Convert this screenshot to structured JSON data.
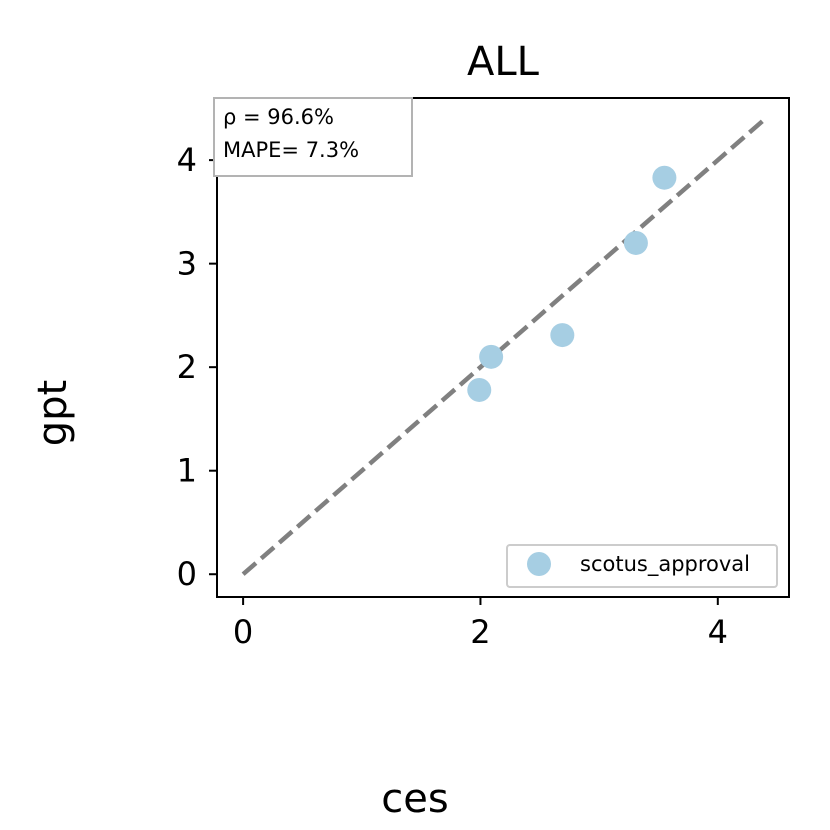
{
  "chart_data": {
    "type": "scatter",
    "title": "ALL",
    "xlabel": "ces",
    "ylabel": "gpt",
    "xlim": [
      -0.22,
      4.6
    ],
    "ylim": [
      -0.22,
      4.6
    ],
    "x_ticks": [
      0,
      2,
      4
    ],
    "y_ticks": [
      0,
      1,
      2,
      3,
      4
    ],
    "x_tick_labels": [
      "0",
      "2",
      "4"
    ],
    "y_tick_labels": [
      "0",
      "1",
      "2",
      "3",
      "4"
    ],
    "grid": false,
    "legend_position": "lower-right",
    "series": [
      {
        "name": "scotus_approval",
        "color": "#a6cee3",
        "points": [
          {
            "x": 1.99,
            "y": 1.78
          },
          {
            "x": 2.09,
            "y": 2.1
          },
          {
            "x": 2.69,
            "y": 2.31
          },
          {
            "x": 3.31,
            "y": 3.2
          },
          {
            "x": 3.55,
            "y": 3.83
          }
        ]
      }
    ],
    "reference_line": {
      "from": [
        0,
        0
      ],
      "to": [
        4.4,
        4.4
      ],
      "color": "#808080",
      "style": "dashed"
    },
    "annotations": {
      "rho": "ρ = 96.6%",
      "mape": "MAPE= 7.3%"
    }
  }
}
